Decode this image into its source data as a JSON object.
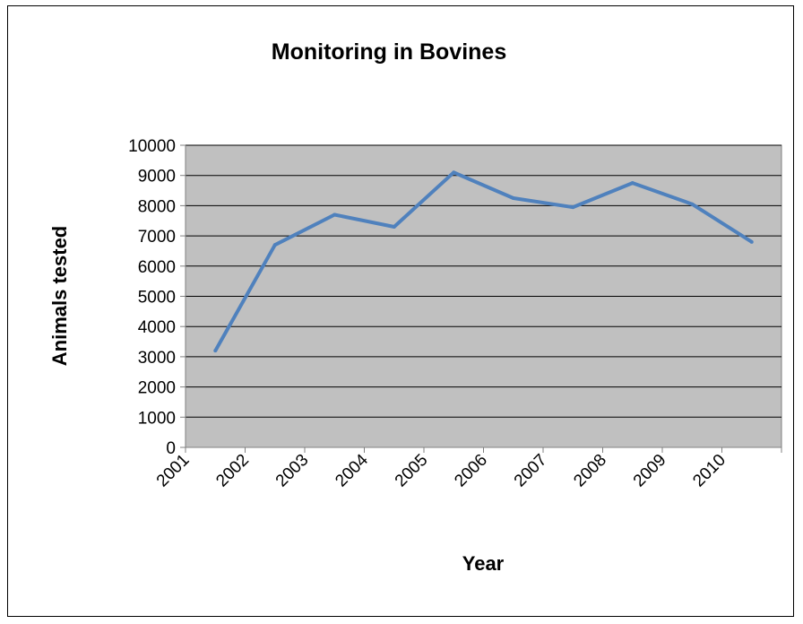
{
  "chart_data": {
    "type": "line",
    "title": "Monitoring in Bovines",
    "xlabel": "Year",
    "ylabel": "Animals tested",
    "categories": [
      "2001",
      "2002",
      "2003",
      "2004",
      "2005",
      "2006",
      "2007",
      "2008",
      "2009",
      "2010"
    ],
    "series": [
      {
        "values": [
          3200,
          6700,
          7700,
          7300,
          9100,
          8250,
          7950,
          8750,
          8050,
          6800
        ],
        "color": "#4f81bd"
      }
    ],
    "ylim": [
      0,
      10000
    ],
    "yticks": [
      "0",
      "1000",
      "2000",
      "3000",
      "4000",
      "5000",
      "6000",
      "7000",
      "8000",
      "9000",
      "10000"
    ],
    "grid": true,
    "plot_background": "#c0c0c0",
    "legend": "none"
  }
}
